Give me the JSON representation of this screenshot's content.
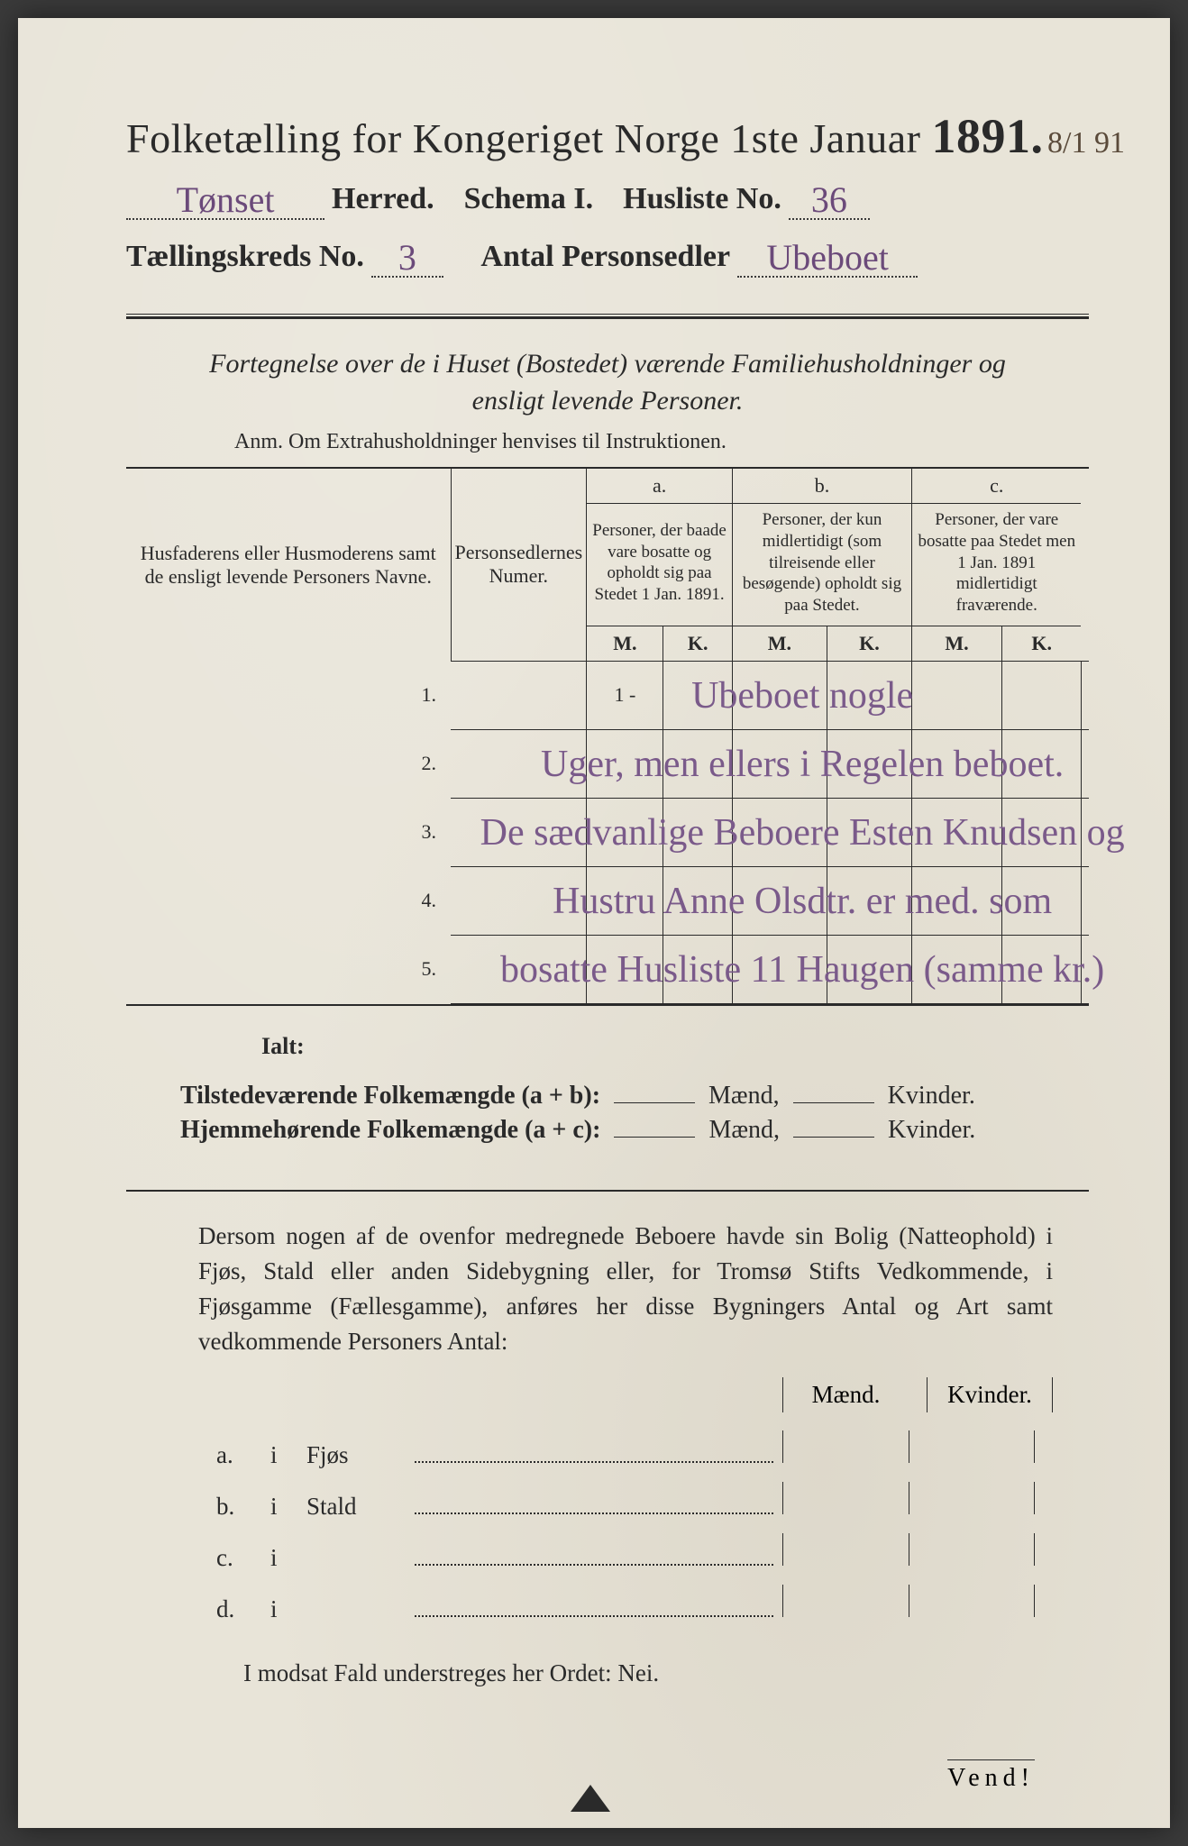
{
  "colors": {
    "paper": "#e8e4d8",
    "ink": "#2a2a2a",
    "handwriting": "#7a5a8a",
    "background": "#3a3a3a"
  },
  "header": {
    "title_prefix": "Folketælling for Kongeriget Norge 1ste Januar",
    "year": "1891.",
    "margin_date": "8/1 91",
    "herred_value": "Tønset",
    "herred_label": "Herred.",
    "schema_label": "Schema I.",
    "husliste_label": "Husliste No.",
    "husliste_value": "36",
    "kreds_label": "Tællingskreds No.",
    "kreds_value": "3",
    "antal_label": "Antal Personsedler",
    "antal_value": "Ubeboet"
  },
  "subtitle": {
    "line": "Fortegnelse over de i Huset (Bostedet) værende Familiehusholdninger og ensligt levende Personer.",
    "anm": "Anm.  Om Extrahusholdninger henvises til Instruktionen."
  },
  "table": {
    "col_names": "Husfaderens eller Husmoderens samt de ensligt levende Personers Navne.",
    "col_num": "Personsedlernes Numer.",
    "col_a_label": "a.",
    "col_a": "Personer, der baade vare bosatte og opholdt sig paa Stedet 1 Jan. 1891.",
    "col_b_label": "b.",
    "col_b": "Personer, der kun midlertidigt (som tilreisende eller besøgende) opholdt sig paa Stedet.",
    "col_c_label": "c.",
    "col_c": "Personer, der vare bosatte paa Stedet men 1 Jan. 1891 midlertidigt fraværende.",
    "m": "M.",
    "k": "K.",
    "rows": [
      {
        "n": "1.",
        "hand": "Ubeboet nogle",
        "num": "1 -"
      },
      {
        "n": "2.",
        "hand": "Uger, men ellers i Regelen beboet.",
        "num": ""
      },
      {
        "n": "3.",
        "hand": "De sædvanlige Beboere Esten Knudsen og",
        "num": ""
      },
      {
        "n": "4.",
        "hand": "Hustru Anne Olsdtr. er med. som",
        "num": ""
      },
      {
        "n": "5.",
        "hand": "bosatte Husliste 11 Haugen (samme kr.)",
        "num": ""
      }
    ]
  },
  "totals": {
    "ialt": "Ialt:",
    "line1_label": "Tilstedeværende Folkemængde (a + b):",
    "line2_label": "Hjemmehørende Folkemængde (a + c):",
    "maend": "Mænd,",
    "kvinder": "Kvinder."
  },
  "lower": {
    "para": "Dersom nogen af de ovenfor medregnede Beboere havde sin Bolig (Natteophold) i Fjøs, Stald eller anden Sidebygning eller, for Tromsø Stifts Vedkommende, i Fjøsgamme (Fællesgamme), anføres her disse Bygningers Antal og Art samt vedkommende Personers Antal:",
    "mk_m": "Mænd.",
    "mk_k": "Kvinder.",
    "rows": [
      {
        "lbl": "a.",
        "txt": "Fjøs"
      },
      {
        "lbl": "b.",
        "txt": "Stald"
      },
      {
        "lbl": "c.",
        "txt": ""
      },
      {
        "lbl": "d.",
        "txt": ""
      }
    ],
    "nei": "I modsat Fald understreges her Ordet: Nei.",
    "vend": "Vend!"
  }
}
